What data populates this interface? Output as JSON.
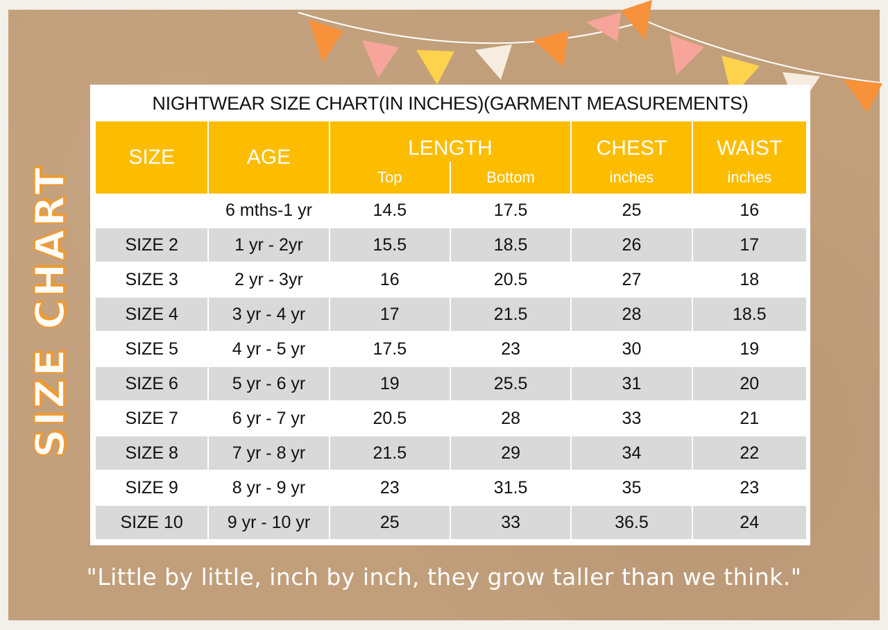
{
  "title": "NIGHTWEAR SIZE CHART(IN INCHES)(GARMENT MEASUREMENTS)",
  "side_heading": "SIZE CHART",
  "quote": "\"Little by little, inch by inch, they grow taller than we think.\"",
  "colors": {
    "header": "#fcbd00",
    "stripe": "#d9d9d9",
    "accent": "#f29a2e",
    "background": "#c29f7b"
  },
  "headers": {
    "size": "SIZE",
    "age": "AGE",
    "length": "LENGTH",
    "chest": "CHEST",
    "waist": "WAIST",
    "top": "Top",
    "bottom": "Bottom",
    "chest_unit": "inches",
    "waist_unit": "inches"
  },
  "rows": [
    [
      "",
      "6 mths-1 yr",
      "14.5",
      "17.5",
      "25",
      "16"
    ],
    [
      "SIZE 2",
      "1 yr - 2yr",
      "15.5",
      "18.5",
      "26",
      "17"
    ],
    [
      "SIZE 3",
      "2 yr - 3yr",
      "16",
      "20.5",
      "27",
      "18"
    ],
    [
      "SIZE 4",
      "3 yr - 4 yr",
      "17",
      "21.5",
      "28",
      "18.5"
    ],
    [
      "SIZE 5",
      "4 yr - 5 yr",
      "17.5",
      "23",
      "30",
      "19"
    ],
    [
      "SIZE 6",
      "5 yr - 6 yr",
      "19",
      "25.5",
      "31",
      "20"
    ],
    [
      "SIZE 7",
      "6 yr - 7 yr",
      "20.5",
      "28",
      "33",
      "21"
    ],
    [
      "SIZE 8",
      "7 yr - 8 yr",
      "21.5",
      "29",
      "34",
      "22"
    ],
    [
      "SIZE 9",
      "8 yr - 9 yr",
      "23",
      "31.5",
      "35",
      "23"
    ],
    [
      "SIZE 10",
      "9 yr - 10 yr",
      "25",
      "33",
      "36.5",
      "24"
    ]
  ]
}
